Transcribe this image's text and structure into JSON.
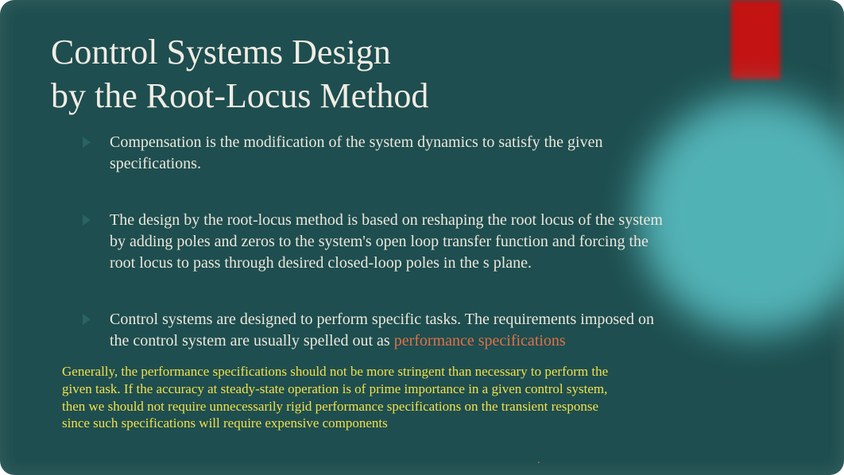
{
  "colors": {
    "background": "#1e4e4f",
    "title_text": "#f0ece4",
    "body_text": "#ece7dc",
    "highlight_text": "#e07048",
    "footnote_text": "#f3e04b",
    "accent_red": "#c31313",
    "circle_teal": "#5bc4c8",
    "bullet_marker": "#2a6364"
  },
  "typography": {
    "font_family": "Georgia serif",
    "title_size_pt": 33,
    "body_size_pt": 15,
    "footnote_size_pt": 13
  },
  "title": {
    "line1": "Control Systems Design",
    "line2": "by the Root-Locus Method"
  },
  "bullets": [
    {
      "text": "Compensation is the modification of the system dynamics to satisfy the given specifications."
    },
    {
      "text": "The design by the root-locus method is based on reshaping the root locus of the system by adding poles and zeros to the system's open loop transfer function and forcing the root locus to pass through desired closed-loop poles in the s plane."
    },
    {
      "text_before": "Control systems are designed to perform specific tasks. The requirements imposed on the control system are usually spelled out as ",
      "highlight": "performance specifications"
    }
  ],
  "footnote": "Generally, the performance specifications should not be more stringent than necessary to perform the given task. If the accuracy at steady-state operation is of prime importance in a given control system, then we should not require unnecessarily rigid performance specifications on the transient response since such specifications will require expensive components",
  "tiny_mark": "."
}
